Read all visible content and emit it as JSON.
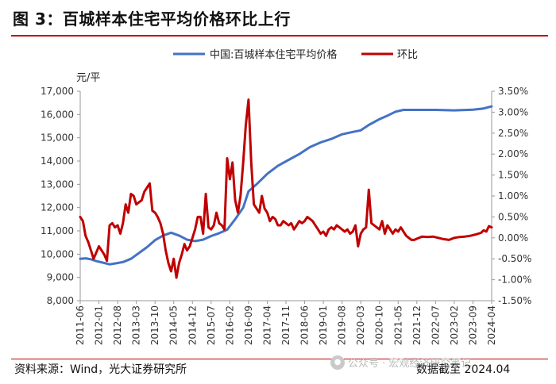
{
  "header": {
    "title": "图 3：百城样本住宅平均价格环比上行"
  },
  "footer": {
    "source": "资料来源：Wind，光大证券研究所",
    "date": "数据截至 2024.04",
    "watermark": "公众号 · 宏观经济研究笔记"
  },
  "chart_data": {
    "type": "line",
    "colors": {
      "price": "#4472C4",
      "mom": "#C00000"
    },
    "unit_label": "元/平",
    "y_left": {
      "ticks": [
        "17,000",
        "16,000",
        "15,000",
        "14,000",
        "13,000",
        "12,000",
        "11,000",
        "10,000",
        "9,000",
        "8,000"
      ],
      "range": [
        8000,
        17000
      ]
    },
    "y_right": {
      "ticks": [
        "3.50%",
        "3.00%",
        "2.50%",
        "2.00%",
        "1.50%",
        "1.00%",
        "0.50%",
        "0.00%",
        "-0.50%",
        "-1.00%",
        "-1.50%"
      ],
      "range": [
        -1.5,
        3.5
      ]
    },
    "x_ticks": [
      "2011-06",
      "2012-01",
      "2012-08",
      "2013-03",
      "2013-10",
      "2014-05",
      "2014-12",
      "2015-07",
      "2016-02",
      "2016-09",
      "2017-04",
      "2017-11",
      "2018-06",
      "2019-01",
      "2019-08",
      "2020-03",
      "2020-10",
      "2021-05",
      "2021-12",
      "2022-07",
      "2023-02",
      "2023-09",
      "2024-04"
    ],
    "x_range": [
      "2011-06",
      "2024-04"
    ],
    "legend_position": "top-center",
    "grid": false,
    "series": [
      {
        "name": "中国:百城样本住宅平均价格",
        "axis": "left",
        "points": [
          [
            "2011-06",
            9800
          ],
          [
            "2011-08",
            9820
          ],
          [
            "2011-10",
            9780
          ],
          [
            "2011-12",
            9700
          ],
          [
            "2012-03",
            9620
          ],
          [
            "2012-05",
            9560
          ],
          [
            "2012-07",
            9600
          ],
          [
            "2012-10",
            9660
          ],
          [
            "2013-01",
            9800
          ],
          [
            "2013-04",
            10050
          ],
          [
            "2013-07",
            10300
          ],
          [
            "2013-10",
            10600
          ],
          [
            "2014-01",
            10800
          ],
          [
            "2014-04",
            10920
          ],
          [
            "2014-07",
            10800
          ],
          [
            "2014-10",
            10620
          ],
          [
            "2015-01",
            10560
          ],
          [
            "2015-04",
            10620
          ],
          [
            "2015-07",
            10780
          ],
          [
            "2015-10",
            10900
          ],
          [
            "2016-01",
            11050
          ],
          [
            "2016-04",
            11500
          ],
          [
            "2016-07",
            12000
          ],
          [
            "2016-09",
            12700
          ],
          [
            "2016-12",
            13000
          ],
          [
            "2017-04",
            13450
          ],
          [
            "2017-08",
            13800
          ],
          [
            "2017-12",
            14050
          ],
          [
            "2018-04",
            14300
          ],
          [
            "2018-08",
            14600
          ],
          [
            "2018-12",
            14800
          ],
          [
            "2019-04",
            14950
          ],
          [
            "2019-08",
            15150
          ],
          [
            "2019-12",
            15250
          ],
          [
            "2020-03",
            15320
          ],
          [
            "2020-06",
            15550
          ],
          [
            "2020-10",
            15800
          ],
          [
            "2021-01",
            15950
          ],
          [
            "2021-04",
            16120
          ],
          [
            "2021-07",
            16200
          ],
          [
            "2021-12",
            16200
          ],
          [
            "2022-07",
            16200
          ],
          [
            "2023-02",
            16180
          ],
          [
            "2023-09",
            16210
          ],
          [
            "2024-01",
            16260
          ],
          [
            "2024-04",
            16350
          ]
        ]
      },
      {
        "name": "环比",
        "axis": "right",
        "points": [
          [
            "2011-06",
            0.5
          ],
          [
            "2011-07",
            0.4
          ],
          [
            "2011-08",
            0.05
          ],
          [
            "2011-09",
            -0.1
          ],
          [
            "2011-10",
            -0.3
          ],
          [
            "2011-11",
            -0.5
          ],
          [
            "2011-12",
            -0.35
          ],
          [
            "2012-01",
            -0.2
          ],
          [
            "2012-02",
            -0.3
          ],
          [
            "2012-03",
            -0.4
          ],
          [
            "2012-04",
            -0.55
          ],
          [
            "2012-05",
            0.3
          ],
          [
            "2012-06",
            0.35
          ],
          [
            "2012-07",
            0.25
          ],
          [
            "2012-08",
            0.3
          ],
          [
            "2012-09",
            0.1
          ],
          [
            "2012-10",
            0.35
          ],
          [
            "2012-11",
            0.8
          ],
          [
            "2012-12",
            0.6
          ],
          [
            "2013-01",
            1.05
          ],
          [
            "2013-02",
            1.0
          ],
          [
            "2013-03",
            0.8
          ],
          [
            "2013-04",
            0.85
          ],
          [
            "2013-05",
            0.9
          ],
          [
            "2013-06",
            1.1
          ],
          [
            "2013-07",
            1.2
          ],
          [
            "2013-08",
            1.3
          ],
          [
            "2013-09",
            0.65
          ],
          [
            "2013-10",
            0.6
          ],
          [
            "2013-11",
            0.5
          ],
          [
            "2013-12",
            0.35
          ],
          [
            "2014-01",
            0.1
          ],
          [
            "2014-02",
            -0.3
          ],
          [
            "2014-03",
            -0.6
          ],
          [
            "2014-04",
            -0.8
          ],
          [
            "2014-05",
            -0.5
          ],
          [
            "2014-06",
            -0.95
          ],
          [
            "2014-07",
            -0.6
          ],
          [
            "2014-08",
            -0.4
          ],
          [
            "2014-09",
            -0.15
          ],
          [
            "2014-10",
            -0.3
          ],
          [
            "2014-11",
            -0.2
          ],
          [
            "2014-12",
            0.0
          ],
          [
            "2015-01",
            0.2
          ],
          [
            "2015-02",
            0.5
          ],
          [
            "2015-03",
            0.5
          ],
          [
            "2015-04",
            0.1
          ],
          [
            "2015-05",
            1.05
          ],
          [
            "2015-06",
            0.25
          ],
          [
            "2015-07",
            0.2
          ],
          [
            "2015-08",
            0.3
          ],
          [
            "2015-09",
            0.6
          ],
          [
            "2015-10",
            0.35
          ],
          [
            "2015-11",
            0.3
          ],
          [
            "2015-12",
            0.2
          ],
          [
            "2016-01",
            1.9
          ],
          [
            "2016-02",
            1.4
          ],
          [
            "2016-03",
            1.8
          ],
          [
            "2016-04",
            0.9
          ],
          [
            "2016-05",
            0.6
          ],
          [
            "2016-06",
            1.0
          ],
          [
            "2016-07",
            1.8
          ],
          [
            "2016-08",
            2.7
          ],
          [
            "2016-09",
            3.3
          ],
          [
            "2016-10",
            1.8
          ],
          [
            "2016-11",
            0.8
          ],
          [
            "2016-12",
            0.7
          ],
          [
            "2017-01",
            0.6
          ],
          [
            "2017-02",
            1.0
          ],
          [
            "2017-03",
            0.7
          ],
          [
            "2017-04",
            0.6
          ],
          [
            "2017-05",
            0.4
          ],
          [
            "2017-06",
            0.5
          ],
          [
            "2017-07",
            0.45
          ],
          [
            "2017-08",
            0.3
          ],
          [
            "2017-09",
            0.3
          ],
          [
            "2017-10",
            0.4
          ],
          [
            "2017-11",
            0.35
          ],
          [
            "2017-12",
            0.3
          ],
          [
            "2018-01",
            0.35
          ],
          [
            "2018-02",
            0.2
          ],
          [
            "2018-03",
            0.3
          ],
          [
            "2018-04",
            0.4
          ],
          [
            "2018-05",
            0.35
          ],
          [
            "2018-06",
            0.4
          ],
          [
            "2018-07",
            0.5
          ],
          [
            "2018-08",
            0.45
          ],
          [
            "2018-09",
            0.4
          ],
          [
            "2018-10",
            0.3
          ],
          [
            "2018-11",
            0.2
          ],
          [
            "2018-12",
            0.1
          ],
          [
            "2019-01",
            0.15
          ],
          [
            "2019-02",
            0.05
          ],
          [
            "2019-03",
            0.2
          ],
          [
            "2019-04",
            0.25
          ],
          [
            "2019-05",
            0.2
          ],
          [
            "2019-06",
            0.3
          ],
          [
            "2019-07",
            0.25
          ],
          [
            "2019-08",
            0.2
          ],
          [
            "2019-09",
            0.15
          ],
          [
            "2019-10",
            0.2
          ],
          [
            "2019-11",
            0.1
          ],
          [
            "2019-12",
            0.15
          ],
          [
            "2020-01",
            0.3
          ],
          [
            "2020-02",
            -0.2
          ],
          [
            "2020-03",
            0.1
          ],
          [
            "2020-04",
            0.2
          ],
          [
            "2020-05",
            0.25
          ],
          [
            "2020-06",
            1.15
          ],
          [
            "2020-07",
            0.35
          ],
          [
            "2020-08",
            0.3
          ],
          [
            "2020-09",
            0.25
          ],
          [
            "2020-10",
            0.2
          ],
          [
            "2020-11",
            0.4
          ],
          [
            "2020-12",
            0.1
          ],
          [
            "2021-01",
            0.3
          ],
          [
            "2021-02",
            0.2
          ],
          [
            "2021-03",
            0.1
          ],
          [
            "2021-04",
            0.2
          ],
          [
            "2021-05",
            0.15
          ],
          [
            "2021-06",
            0.25
          ],
          [
            "2021-07",
            0.15
          ],
          [
            "2021-08",
            0.05
          ],
          [
            "2021-09",
            0.0
          ],
          [
            "2021-10",
            -0.05
          ],
          [
            "2021-11",
            -0.05
          ],
          [
            "2021-12",
            -0.02
          ],
          [
            "2022-02",
            0.03
          ],
          [
            "2022-04",
            0.02
          ],
          [
            "2022-06",
            0.03
          ],
          [
            "2022-08",
            0.0
          ],
          [
            "2022-10",
            -0.03
          ],
          [
            "2022-12",
            -0.05
          ],
          [
            "2023-02",
            0.0
          ],
          [
            "2023-04",
            0.02
          ],
          [
            "2023-06",
            0.03
          ],
          [
            "2023-08",
            0.05
          ],
          [
            "2023-10",
            0.08
          ],
          [
            "2023-12",
            0.12
          ],
          [
            "2024-01",
            0.18
          ],
          [
            "2024-02",
            0.15
          ],
          [
            "2024-03",
            0.28
          ],
          [
            "2024-04",
            0.25
          ]
        ]
      }
    ]
  }
}
